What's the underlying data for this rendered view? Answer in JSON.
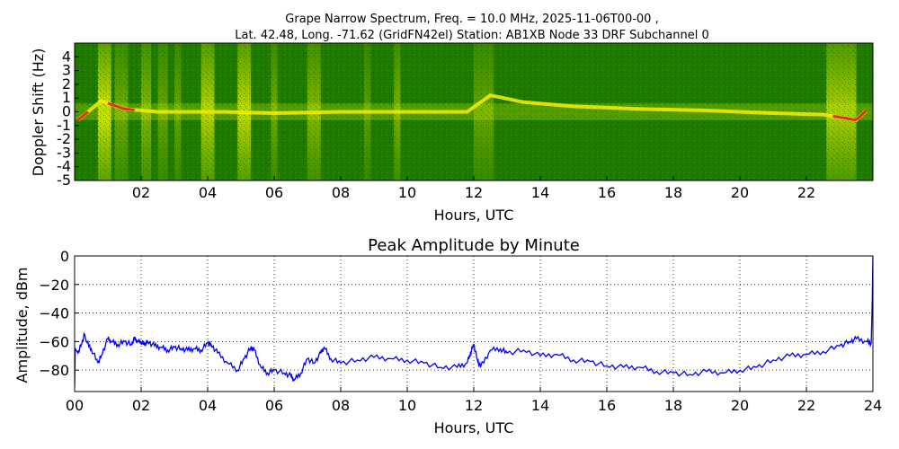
{
  "colors": {
    "background": "#ffffff",
    "spectrum_green": "#1f7a00",
    "spectrum_dark": "#0f5a00",
    "spectrum_yellow": "#e6f000",
    "spectrum_red": "#e0301a",
    "amplitude_line": "#0000ff",
    "grid": "#000000"
  },
  "chart_data": [
    {
      "type": "heatmap",
      "title_line1": "Grape Narrow Spectrum, Freq. = 10.0 MHz, 2025-11-06T00-00 ,",
      "title_line2": "Lat.  42.48, Long. -71.62 (GridFN42el) Station: AB1XB Node 33 DRF Subchannel 0",
      "xlabel": "Hours, UTC",
      "ylabel": "Doppler Shift (Hz)",
      "xlim": [
        0,
        24
      ],
      "ylim": [
        -5,
        5
      ],
      "x_ticks": [
        "02",
        "04",
        "06",
        "08",
        "10",
        "12",
        "14",
        "16",
        "18",
        "20",
        "22"
      ],
      "x_tick_values": [
        2,
        4,
        6,
        8,
        10,
        12,
        14,
        16,
        18,
        20,
        22
      ],
      "y_ticks": [
        "4",
        "3",
        "2",
        "1",
        "0",
        "-1",
        "-2",
        "-3",
        "-4",
        "-5"
      ],
      "y_tick_values": [
        4,
        3,
        2,
        1,
        0,
        -1,
        -2,
        -3,
        -4,
        -5
      ],
      "bright_bands": [
        {
          "start": 0.7,
          "end": 1.1,
          "strength": 0.9
        },
        {
          "start": 1.2,
          "end": 1.6,
          "strength": 0.4
        },
        {
          "start": 2.0,
          "end": 2.3,
          "strength": 0.5
        },
        {
          "start": 2.5,
          "end": 2.8,
          "strength": 0.35
        },
        {
          "start": 3.0,
          "end": 3.2,
          "strength": 0.35
        },
        {
          "start": 3.8,
          "end": 4.2,
          "strength": 0.75
        },
        {
          "start": 4.9,
          "end": 5.3,
          "strength": 0.8
        },
        {
          "start": 5.9,
          "end": 6.1,
          "strength": 0.4
        },
        {
          "start": 7.0,
          "end": 7.4,
          "strength": 0.5
        },
        {
          "start": 8.7,
          "end": 8.9,
          "strength": 0.3
        },
        {
          "start": 9.6,
          "end": 9.8,
          "strength": 0.45
        },
        {
          "start": 12.0,
          "end": 12.6,
          "strength": 0.35
        },
        {
          "start": 22.6,
          "end": 23.5,
          "strength": 0.7
        }
      ],
      "doppler_trace": {
        "hours": [
          0.1,
          0.8,
          1.5,
          2.5,
          3.5,
          4.5,
          6.0,
          8.0,
          10.0,
          11.8,
          12.5,
          13.5,
          15.0,
          17.0,
          19.0,
          21.0,
          22.5,
          23.5,
          23.8
        ],
        "hz": [
          -0.6,
          0.8,
          0.2,
          0.0,
          0.0,
          0.0,
          -0.1,
          0.0,
          0.0,
          0.0,
          1.2,
          0.7,
          0.4,
          0.2,
          0.1,
          -0.1,
          -0.2,
          -0.6,
          0.1
        ],
        "red_segments": [
          [
            0.1,
            0.4
          ],
          [
            1.0,
            1.8
          ],
          [
            22.8,
            23.8
          ]
        ]
      }
    },
    {
      "type": "line",
      "title": "Peak Amplitude by Minute",
      "xlabel": "Hours, UTC",
      "ylabel": "Amplitude, dBm",
      "xlim": [
        0,
        24
      ],
      "ylim": [
        -95,
        0
      ],
      "x_ticks": [
        "00",
        "02",
        "04",
        "06",
        "08",
        "10",
        "12",
        "14",
        "16",
        "18",
        "20",
        "22",
        "24"
      ],
      "x_tick_values": [
        0,
        2,
        4,
        6,
        8,
        10,
        12,
        14,
        16,
        18,
        20,
        22,
        24
      ],
      "y_ticks": [
        "0",
        "−20",
        "−40",
        "−60",
        "−80"
      ],
      "y_tick_values": [
        0,
        -20,
        -40,
        -60,
        -80
      ],
      "grid": true,
      "series": [
        {
          "name": "peak amplitude",
          "x": [
            0.0,
            0.02,
            0.1,
            0.2,
            0.3,
            0.35,
            0.5,
            0.7,
            0.8,
            1.0,
            1.1,
            1.3,
            1.5,
            1.7,
            1.8,
            1.9,
            2.0,
            2.1,
            2.2,
            2.4,
            2.6,
            2.8,
            3.0,
            3.2,
            3.4,
            3.6,
            3.8,
            4.0,
            4.1,
            4.3,
            4.6,
            4.9,
            5.1,
            5.3,
            5.4,
            5.6,
            5.8,
            6.0,
            6.3,
            6.5,
            6.6,
            6.8,
            7.0,
            7.2,
            7.4,
            7.5,
            7.7,
            8.0,
            8.5,
            9.0,
            9.5,
            10.0,
            10.5,
            11.0,
            11.5,
            11.8,
            11.9,
            12.0,
            12.1,
            12.2,
            12.5,
            12.8,
            13.0,
            13.5,
            14.0,
            14.5,
            15.0,
            15.5,
            16.0,
            16.5,
            17.0,
            17.5,
            18.0,
            18.5,
            19.0,
            19.5,
            20.0,
            20.5,
            21.0,
            21.5,
            22.0,
            22.5,
            23.0,
            23.3,
            23.5,
            23.8,
            23.95,
            23.98,
            24.0
          ],
          "values": [
            -92,
            -65,
            -68,
            -62,
            -55,
            -60,
            -65,
            -75,
            -70,
            -58,
            -60,
            -62,
            -60,
            -62,
            -58,
            -60,
            -60,
            -62,
            -60,
            -63,
            -64,
            -66,
            -64,
            -65,
            -66,
            -65,
            -66,
            -61,
            -62,
            -68,
            -75,
            -80,
            -72,
            -64,
            -66,
            -78,
            -82,
            -80,
            -82,
            -84,
            -87,
            -82,
            -72,
            -75,
            -68,
            -64,
            -72,
            -75,
            -73,
            -71,
            -72,
            -73,
            -75,
            -78,
            -78,
            -75,
            -68,
            -62,
            -72,
            -78,
            -66,
            -65,
            -68,
            -66,
            -70,
            -69,
            -73,
            -74,
            -77,
            -78,
            -78,
            -81,
            -82,
            -83,
            -81,
            -82,
            -80,
            -78,
            -73,
            -70,
            -69,
            -67,
            -63,
            -60,
            -58,
            -60,
            -61,
            -30,
            0
          ]
        }
      ]
    }
  ]
}
